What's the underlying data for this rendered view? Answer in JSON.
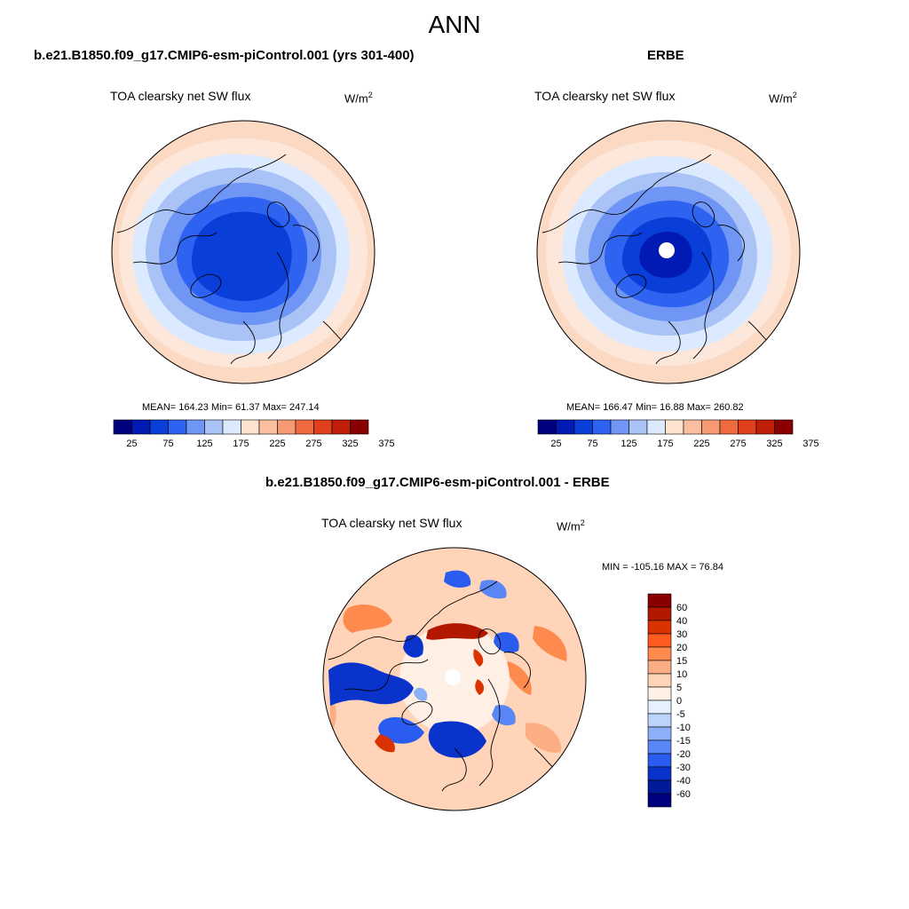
{
  "header": {
    "title": "ANN"
  },
  "panels": {
    "model": {
      "title": "b.e21.B1850.f09_g17.CMIP6-esm-piControl.001 (yrs 301-400)",
      "variable": "TOA clearsky net SW flux",
      "units_base": "W/m",
      "units_exp": "2",
      "stats": "MEAN= 164.23  Min=  61.37  Max= 247.14"
    },
    "obs": {
      "title": "ERBE",
      "variable": "TOA clearsky net SW flux",
      "units_base": "W/m",
      "units_exp": "2",
      "stats": "MEAN= 166.47  Min=  16.88  Max= 260.82"
    },
    "diff": {
      "title": "b.e21.B1850.f09_g17.CMIP6-esm-piControl.001 - ERBE",
      "variable": "TOA clearsky net SW flux",
      "units_base": "W/m",
      "units_exp": "2",
      "stats": "MIN = -105.16 MAX =  76.84"
    }
  },
  "colorbars": {
    "absolute": {
      "labels": [
        "25",
        "75",
        "125",
        "175",
        "225",
        "275",
        "325",
        "375"
      ],
      "colors": [
        "#00007f",
        "#001ab3",
        "#0a3ed8",
        "#2e63f2",
        "#6f95f5",
        "#a9c3f7",
        "#dceaff",
        "#ffe3d0",
        "#fbbfa0",
        "#f79a74",
        "#f06a40",
        "#e0411c",
        "#c21f0a",
        "#8a0000"
      ]
    },
    "difference": {
      "labels": [
        "60",
        "40",
        "30",
        "20",
        "15",
        "10",
        "5",
        "0",
        "-5",
        "-10",
        "-15",
        "-20",
        "-30",
        "-40",
        "-60"
      ],
      "colors": [
        "#8a0000",
        "#b21800",
        "#db3300",
        "#ff5a1f",
        "#ff8a4d",
        "#fbae84",
        "#ffd4b8",
        "#fff0e6",
        "#e6f0ff",
        "#bcd3fb",
        "#8cb0f8",
        "#5b86f5",
        "#2a5cf0",
        "#0a33cc",
        "#001a99",
        "#00007f"
      ]
    }
  }
}
